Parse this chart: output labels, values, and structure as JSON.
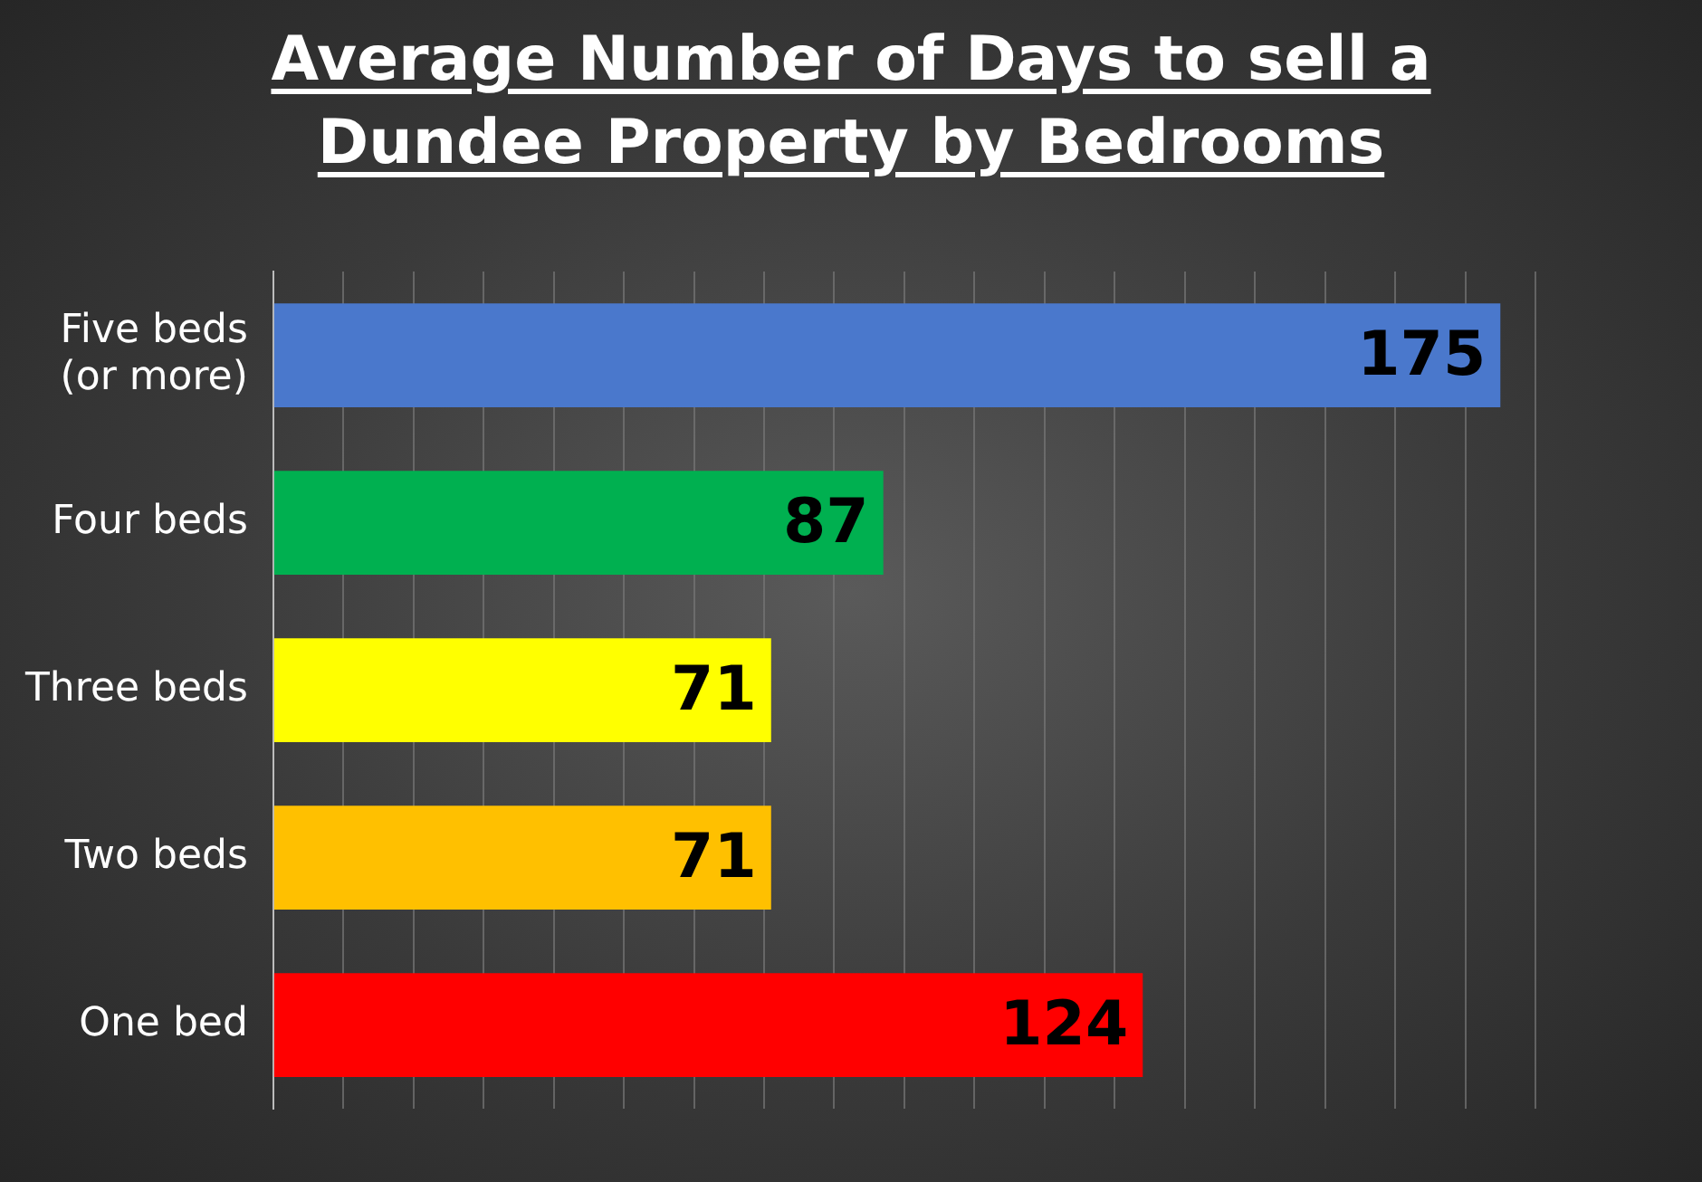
{
  "chart_data": {
    "type": "bar",
    "orientation": "horizontal",
    "title": "Average Number of Days to sell a Dundee Property by Bedrooms",
    "categories": [
      "Five beds (or more)",
      "Four beds",
      "Three beds",
      "Two beds",
      "One bed"
    ],
    "values": [
      175,
      87,
      71,
      71,
      124
    ],
    "colors": [
      "#4a78cc",
      "#00b050",
      "#ffff00",
      "#ffc000",
      "#ff0000"
    ],
    "xlim": [
      0,
      180
    ],
    "xticks": [
      {
        "value": 0,
        "label": null
      },
      {
        "value": 10,
        "label": null
      },
      {
        "value": 20,
        "label": null
      },
      {
        "value": 30,
        "label": null
      },
      {
        "value": 40,
        "label": null
      },
      {
        "value": 50,
        "label": null
      },
      {
        "value": 60,
        "label": null
      },
      {
        "value": 70,
        "label": null
      },
      {
        "value": 80,
        "label": null
      },
      {
        "value": 90,
        "label": null
      },
      {
        "value": 100,
        "label": null
      },
      {
        "value": 110,
        "label": null
      },
      {
        "value": 120,
        "label": null
      },
      {
        "value": 130,
        "label": null
      },
      {
        "value": 140,
        "label": null
      },
      {
        "value": 150,
        "label": null
      },
      {
        "value": 160,
        "label": null
      },
      {
        "value": 170,
        "label": null
      },
      {
        "value": 180,
        "label": null
      }
    ],
    "grid": "x",
    "data_labels": true,
    "legend": false,
    "tick_labels": "y"
  }
}
